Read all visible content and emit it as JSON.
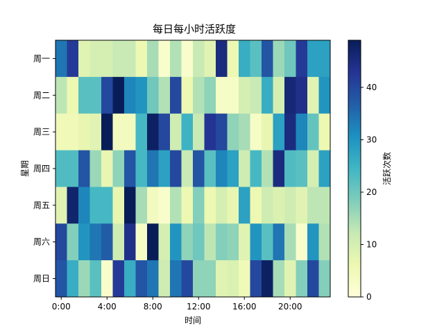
{
  "chart_data": {
    "type": "heatmap",
    "title": "每日每小时活跃度",
    "xlabel": "时间",
    "ylabel": "星期",
    "colorbar_label": "活跃次数",
    "colormap": "YlGnBu",
    "vmin": 0,
    "vmax": 49,
    "colorbar_ticks": [
      0,
      10,
      20,
      30,
      40
    ],
    "x_ticks": [
      {
        "hour": 0,
        "label": "0:00"
      },
      {
        "hour": 4,
        "label": "4:00"
      },
      {
        "hour": 8,
        "label": "8:00"
      },
      {
        "hour": 12,
        "label": "12:00"
      },
      {
        "hour": 16,
        "label": "16:00"
      },
      {
        "hour": 20,
        "label": "20:00"
      }
    ],
    "hours": [
      0,
      1,
      2,
      3,
      4,
      5,
      6,
      7,
      8,
      9,
      10,
      11,
      12,
      13,
      14,
      15,
      16,
      17,
      18,
      19,
      20,
      21,
      22,
      23
    ],
    "days": [
      "周一",
      "周二",
      "周三",
      "周四",
      "周五",
      "周六",
      "周日"
    ],
    "values": [
      [
        34,
        42,
        8,
        10,
        10,
        12,
        12,
        6,
        15,
        2,
        14,
        2,
        12,
        8,
        45,
        6,
        26,
        22,
        38,
        16,
        20,
        42,
        28,
        28
      ],
      [
        13,
        6,
        22,
        22,
        40,
        49,
        32,
        30,
        20,
        14,
        40,
        6,
        14,
        17,
        3,
        3,
        10,
        12,
        26,
        10,
        46,
        44,
        8,
        30
      ],
      [
        5,
        5,
        7,
        8,
        49,
        4,
        4,
        24,
        48,
        40,
        11,
        25,
        12,
        43,
        40,
        17,
        15,
        3,
        7,
        28,
        45,
        32,
        21,
        6
      ],
      [
        23,
        23,
        38,
        16,
        7,
        17,
        38,
        24,
        34,
        28,
        40,
        12,
        38,
        22,
        32,
        28,
        11,
        24,
        14,
        45,
        23,
        22,
        10,
        28
      ],
      [
        8,
        47,
        32,
        24,
        24,
        7,
        49,
        15,
        4,
        2,
        14,
        6,
        18,
        6,
        10,
        7,
        28,
        6,
        11,
        9,
        11,
        8,
        13,
        13
      ],
      [
        40,
        18,
        30,
        34,
        37,
        11,
        44,
        3,
        49,
        10,
        30,
        17,
        20,
        13,
        18,
        17,
        8,
        30,
        22,
        34,
        15,
        2,
        30,
        14
      ],
      [
        38,
        26,
        16,
        22,
        2,
        42,
        26,
        38,
        34,
        11,
        34,
        40,
        17,
        17,
        8,
        9,
        5,
        40,
        48,
        15,
        8,
        18,
        40,
        18
      ]
    ]
  }
}
